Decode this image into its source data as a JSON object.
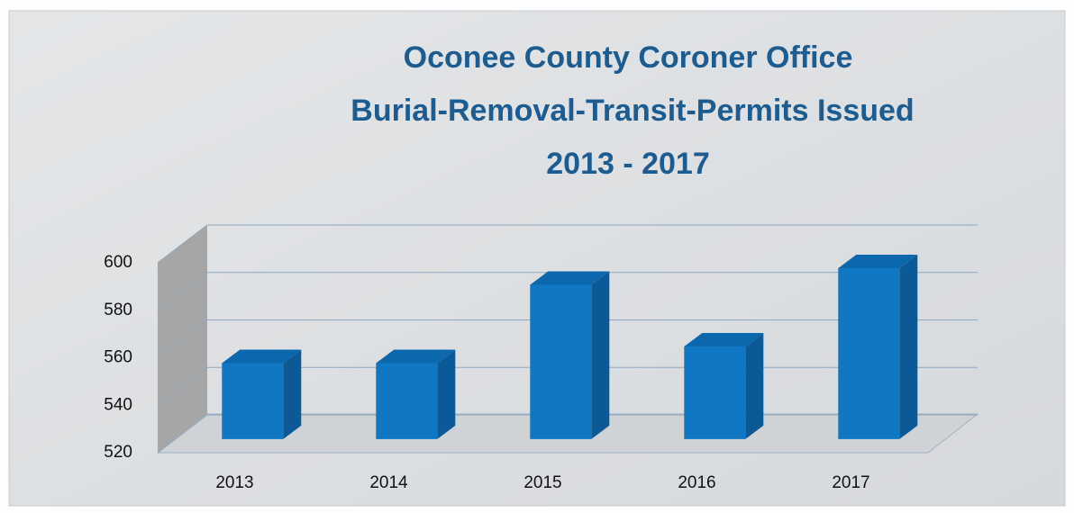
{
  "chart_data": {
    "type": "bar3d",
    "title": [
      "Oconee County Coroner Office",
      "Burial-Removal-Transit-Permits Issued",
      "2013 - 2017"
    ],
    "categories": [
      "2013",
      "2014",
      "2015",
      "2016",
      "2017"
    ],
    "values": [
      552,
      552,
      585,
      559,
      592
    ],
    "color": "#0f77c4",
    "ylim": [
      520,
      600
    ],
    "yticks": [
      520,
      540,
      560,
      580,
      600
    ],
    "grid": true
  }
}
